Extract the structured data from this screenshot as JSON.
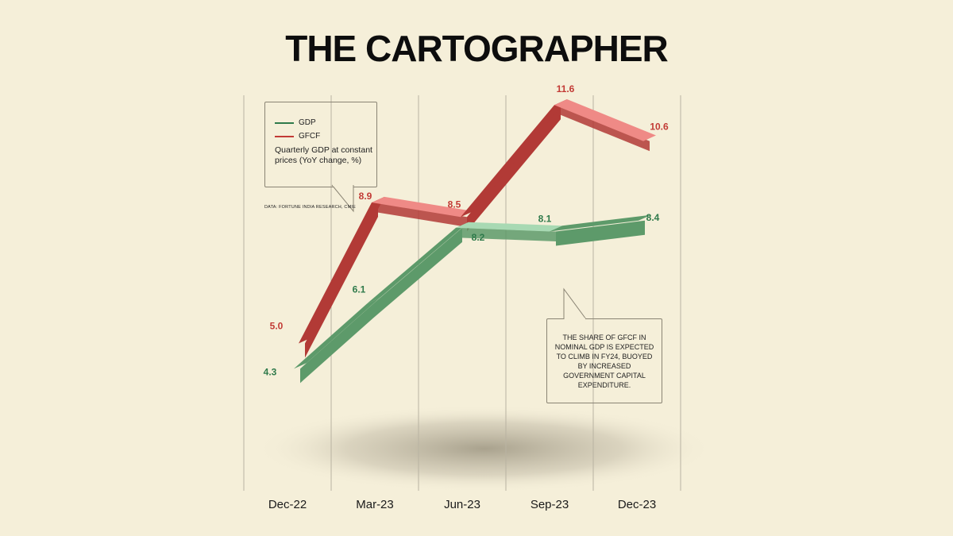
{
  "page": {
    "title": "THE CARTOGRAPHER",
    "legend": {
      "items": [
        {
          "label": "GDP",
          "color": "#2f7a4b"
        },
        {
          "label": "GFCF",
          "color": "#c23a35"
        }
      ],
      "description": "Quarterly GDP at constant prices (YoY change, %)"
    },
    "source": "DATA: FORTUNE INDIA RESEARCH, CMIE",
    "note": "THE SHARE OF GFCF IN NOMINAL GDP IS EXPECTED TO CLIMB IN FY24, BUOYED BY INCREASED GOVERNMENT CAPITAL EXPENDITURE."
  },
  "chart_data": {
    "type": "line",
    "categories": [
      "Dec-22",
      "Mar-23",
      "Jun-23",
      "Sep-23",
      "Dec-23"
    ],
    "series": [
      {
        "name": "GDP",
        "values": [
          4.3,
          6.1,
          8.2,
          8.1,
          8.4
        ],
        "labels": [
          "4.3",
          "6.1",
          "8.2",
          "8.1",
          "8.4"
        ],
        "color": "#2f7a4b",
        "top_color": "#a8d9b3",
        "side_color": "#5d9a6a"
      },
      {
        "name": "GFCF",
        "values": [
          5.0,
          8.9,
          8.5,
          11.6,
          10.6
        ],
        "labels": [
          "5.0",
          "8.9",
          "8.5",
          "11.6",
          "10.6"
        ],
        "color": "#c23a35",
        "top_color": "#ef8a86",
        "side_color": "#b23a36"
      }
    ],
    "title": "",
    "xlabel": "",
    "ylabel": "",
    "grid": "vertical",
    "legend_position": "top-left"
  }
}
